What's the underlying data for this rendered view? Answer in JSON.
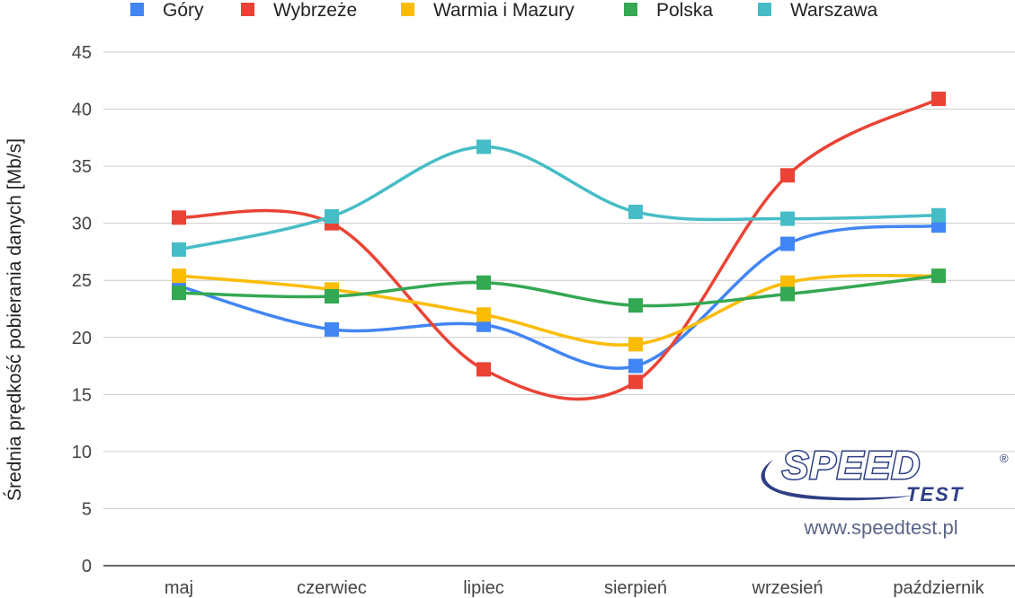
{
  "chart_data": {
    "type": "line",
    "title": "",
    "xlabel": "",
    "ylabel": "Średnia prędkość pobierania danych [Mb/s]",
    "ylim": [
      0,
      45
    ],
    "yticks": [
      0,
      5,
      10,
      15,
      20,
      25,
      30,
      35,
      40,
      45
    ],
    "categories": [
      "maj",
      "czerwiec",
      "lipiec",
      "sierpień",
      "wrzesień",
      "październik"
    ],
    "grid": "horizontal",
    "legend_position": "top",
    "smooth": true,
    "marker": "square",
    "series": [
      {
        "name": "Góry",
        "color": "#4285f4",
        "values": [
          24.5,
          20.7,
          21.1,
          17.5,
          28.2,
          29.8
        ]
      },
      {
        "name": "Wybrzeże",
        "color": "#ea4335",
        "values": [
          30.5,
          30.0,
          17.2,
          16.1,
          34.2,
          40.9
        ]
      },
      {
        "name": "Warmia i Mazury",
        "color": "#fbbc04",
        "values": [
          25.4,
          24.2,
          22.0,
          19.4,
          24.8,
          25.4
        ]
      },
      {
        "name": "Polska",
        "color": "#34a853",
        "values": [
          23.9,
          23.6,
          24.8,
          22.8,
          23.8,
          25.4
        ]
      },
      {
        "name": "Warszawa",
        "color": "#46bdc6",
        "values": [
          27.7,
          30.6,
          36.7,
          31.0,
          30.4,
          30.7
        ]
      }
    ]
  },
  "watermark": {
    "logo_text": "SPEED",
    "logo_subtext": "TEST",
    "registered": "®",
    "url": "www.speedtest.pl"
  }
}
